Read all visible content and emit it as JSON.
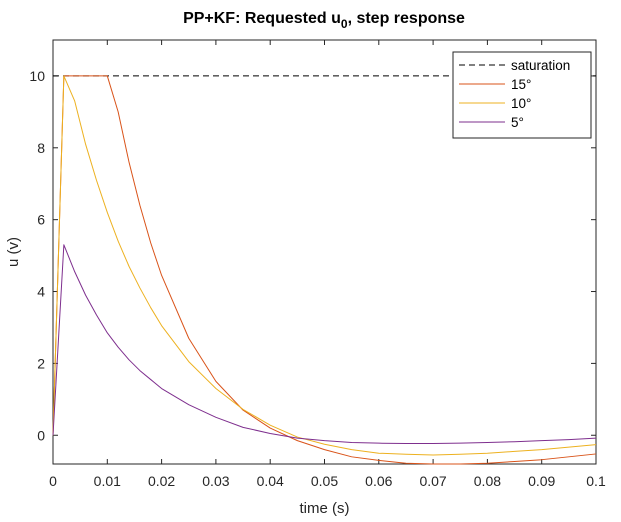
{
  "chart_data": {
    "type": "line",
    "title_main": "PP+KF: Requested u",
    "title_sub": "0",
    "title_rest": ", step response",
    "xlabel": "time (s)",
    "ylabel": "u (v)",
    "xlim": [
      0,
      0.1
    ],
    "ylim": [
      -0.8,
      11
    ],
    "xticks": [
      0,
      0.01,
      0.02,
      0.03,
      0.04,
      0.05,
      0.06,
      0.07,
      0.08,
      0.09,
      0.1
    ],
    "xtick_labels": [
      "0",
      "0.01",
      "0.02",
      "0.03",
      "0.04",
      "0.05",
      "0.06",
      "0.07",
      "0.08",
      "0.09",
      "0.1"
    ],
    "yticks": [
      0,
      2,
      4,
      6,
      8,
      10
    ],
    "ytick_labels": [
      "0",
      "2",
      "4",
      "6",
      "8",
      "10"
    ],
    "grid": false,
    "legend_position": "top-right",
    "series": [
      {
        "name": "saturation",
        "color": "#000000",
        "dash": true,
        "x": [
          0,
          0.1
        ],
        "y": [
          10,
          10
        ]
      },
      {
        "name": "15°",
        "color": "#D95319",
        "dash": false,
        "x": [
          0,
          0.002,
          0.004,
          0.006,
          0.008,
          0.01,
          0.012,
          0.014,
          0.016,
          0.018,
          0.02,
          0.025,
          0.03,
          0.035,
          0.04,
          0.045,
          0.05,
          0.055,
          0.06,
          0.065,
          0.07,
          0.075,
          0.08,
          0.085,
          0.09,
          0.095,
          0.1
        ],
        "y": [
          0,
          10,
          10,
          10,
          10,
          10,
          9.0,
          7.6,
          6.4,
          5.35,
          4.45,
          2.7,
          1.5,
          0.7,
          0.2,
          -0.15,
          -0.4,
          -0.6,
          -0.7,
          -0.78,
          -0.8,
          -0.8,
          -0.78,
          -0.73,
          -0.68,
          -0.6,
          -0.52
        ]
      },
      {
        "name": "10°",
        "color": "#EDB120",
        "dash": false,
        "x": [
          0,
          0.002,
          0.004,
          0.006,
          0.008,
          0.01,
          0.012,
          0.014,
          0.016,
          0.018,
          0.02,
          0.025,
          0.03,
          0.035,
          0.04,
          0.045,
          0.05,
          0.055,
          0.06,
          0.065,
          0.07,
          0.075,
          0.08,
          0.085,
          0.09,
          0.095,
          0.1
        ],
        "y": [
          0,
          10,
          9.3,
          8.1,
          7.1,
          6.2,
          5.4,
          4.7,
          4.1,
          3.55,
          3.05,
          2.05,
          1.3,
          0.72,
          0.28,
          -0.05,
          -0.25,
          -0.4,
          -0.5,
          -0.53,
          -0.55,
          -0.53,
          -0.5,
          -0.45,
          -0.4,
          -0.33,
          -0.26
        ]
      },
      {
        "name": "5°",
        "color": "#7E2F8E",
        "dash": false,
        "x": [
          0,
          0.002,
          0.004,
          0.006,
          0.008,
          0.01,
          0.012,
          0.014,
          0.016,
          0.018,
          0.02,
          0.025,
          0.03,
          0.035,
          0.04,
          0.045,
          0.05,
          0.055,
          0.06,
          0.065,
          0.07,
          0.075,
          0.08,
          0.085,
          0.09,
          0.095,
          0.1
        ],
        "y": [
          0,
          5.3,
          4.55,
          3.9,
          3.35,
          2.85,
          2.45,
          2.1,
          1.8,
          1.55,
          1.3,
          0.85,
          0.5,
          0.22,
          0.05,
          -0.08,
          -0.15,
          -0.2,
          -0.22,
          -0.23,
          -0.23,
          -0.22,
          -0.2,
          -0.18,
          -0.15,
          -0.12,
          -0.08
        ]
      }
    ]
  }
}
